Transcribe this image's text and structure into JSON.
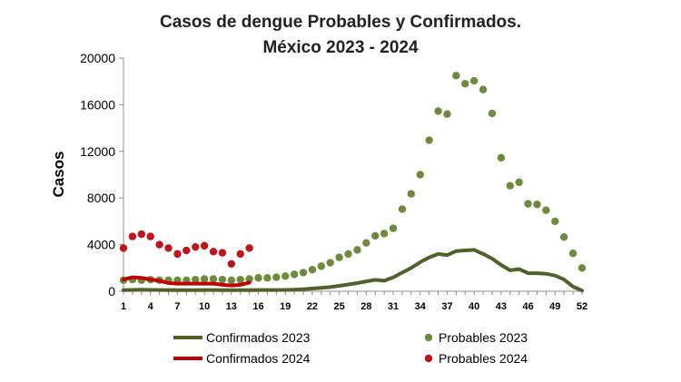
{
  "chart_data": {
    "type": "line",
    "title_line1": "Casos de dengue Probables y Confirmados.",
    "title_line2": "México 2023 - 2024",
    "xlabel": "",
    "ylabel": "Casos",
    "ylim": [
      0,
      20000
    ],
    "xlim": [
      1,
      52
    ],
    "y_ticks": [
      0,
      4000,
      8000,
      12000,
      16000,
      20000
    ],
    "x_ticks": [
      1,
      4,
      7,
      10,
      13,
      16,
      19,
      22,
      25,
      28,
      31,
      34,
      37,
      40,
      43,
      46,
      49,
      52
    ],
    "grid": false,
    "legend_position": "bottom",
    "colors": {
      "conf2023": "#4f6228",
      "prob2023": "#6e8a3c",
      "conf2024": "#c00000",
      "prob2024": "#c0141a"
    },
    "series": [
      {
        "name": "Confirmados 2023",
        "key": "conf2023",
        "style": "line",
        "x": [
          1,
          2,
          3,
          4,
          5,
          6,
          7,
          8,
          9,
          10,
          11,
          12,
          13,
          14,
          15,
          16,
          17,
          18,
          19,
          20,
          21,
          22,
          23,
          24,
          25,
          26,
          27,
          28,
          29,
          30,
          31,
          32,
          33,
          34,
          35,
          36,
          37,
          38,
          39,
          40,
          41,
          42,
          43,
          44,
          45,
          46,
          47,
          48,
          49,
          50,
          51,
          52
        ],
        "values": [
          100,
          120,
          130,
          120,
          110,
          110,
          100,
          100,
          100,
          110,
          110,
          100,
          100,
          90,
          100,
          110,
          110,
          110,
          120,
          140,
          180,
          230,
          290,
          360,
          470,
          580,
          700,
          850,
          980,
          900,
          1200,
          1600,
          2000,
          2500,
          2900,
          3200,
          3100,
          3450,
          3500,
          3550,
          3200,
          2800,
          2250,
          1800,
          1900,
          1550,
          1550,
          1500,
          1350,
          1000,
          400,
          60
        ]
      },
      {
        "name": "Probables 2023",
        "key": "prob2023",
        "style": "points",
        "x": [
          1,
          2,
          3,
          4,
          5,
          6,
          7,
          8,
          9,
          10,
          11,
          12,
          13,
          14,
          15,
          16,
          17,
          18,
          19,
          20,
          21,
          22,
          23,
          24,
          25,
          26,
          27,
          28,
          29,
          30,
          31,
          32,
          33,
          34,
          35,
          36,
          37,
          38,
          39,
          40,
          41,
          42,
          43,
          44,
          45,
          46,
          47,
          48,
          49,
          50,
          51,
          52
        ],
        "values": [
          950,
          1000,
          950,
          1000,
          950,
          950,
          950,
          950,
          1000,
          1050,
          1050,
          1000,
          950,
          1000,
          1050,
          1150,
          1150,
          1200,
          1300,
          1450,
          1600,
          1850,
          2150,
          2450,
          2900,
          3200,
          3550,
          4150,
          4750,
          4950,
          5400,
          7050,
          8350,
          10000,
          12950,
          15450,
          15200,
          18500,
          17800,
          18050,
          17300,
          15250,
          11450,
          9050,
          9350,
          7500,
          7450,
          6950,
          6000,
          4650,
          3250,
          2000
        ]
      },
      {
        "name": "Confirmados 2024",
        "key": "conf2024",
        "style": "line",
        "x": [
          1,
          2,
          3,
          4,
          5,
          6,
          7,
          8,
          9,
          10,
          11,
          12,
          13,
          14,
          15
        ],
        "values": [
          1000,
          1200,
          1150,
          1000,
          900,
          700,
          650,
          650,
          650,
          650,
          650,
          550,
          500,
          550,
          750
        ]
      },
      {
        "name": "Probables 2024",
        "key": "prob2024",
        "style": "points",
        "x": [
          1,
          2,
          3,
          4,
          5,
          6,
          7,
          8,
          9,
          10,
          11,
          12,
          13,
          14,
          15
        ],
        "values": [
          3700,
          4700,
          4900,
          4700,
          4000,
          3700,
          3200,
          3500,
          3800,
          3900,
          3400,
          3300,
          2350,
          3200,
          3700
        ]
      }
    ]
  }
}
